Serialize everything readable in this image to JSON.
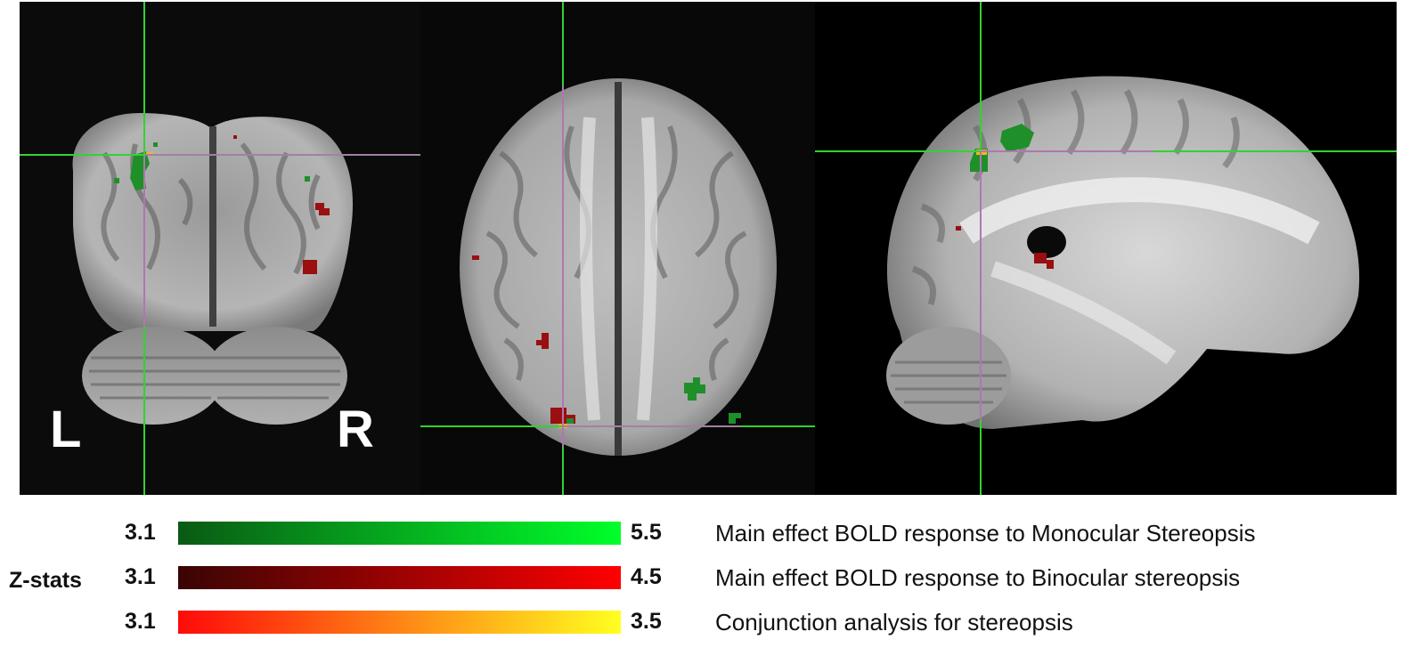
{
  "viewer": {
    "orientation_left": "L",
    "orientation_right": "R",
    "colors": {
      "background": "#060606",
      "crosshair_horizontal": "#2fd42f",
      "crosshair_vertical_cursor": "#d060d0",
      "brain_tissue": "#a9a9a9",
      "monocular_cluster": "#1f8f2a",
      "binocular_cluster": "#9a0f0f",
      "conjunction_cluster": "#ffb020"
    },
    "panels": [
      {
        "name": "coronal-slice"
      },
      {
        "name": "axial-slice"
      },
      {
        "name": "sagittal-slice"
      }
    ]
  },
  "legend": {
    "title": "Z-stats",
    "rows": [
      {
        "min": "3.1",
        "max": "5.5",
        "label": "Main effect BOLD response to Monocular Stereopsis",
        "gradient": [
          "#0a5a14",
          "#00ff2a"
        ]
      },
      {
        "min": "3.1",
        "max": "4.5",
        "label": "Main effect BOLD response to Binocular stereopsis",
        "gradient": [
          "#3a0404",
          "#ff0000"
        ]
      },
      {
        "min": "3.1",
        "max": "3.5",
        "label": "Conjunction analysis for stereopsis",
        "gradient": [
          "#ff0a0a",
          "#ffff20"
        ]
      }
    ]
  }
}
